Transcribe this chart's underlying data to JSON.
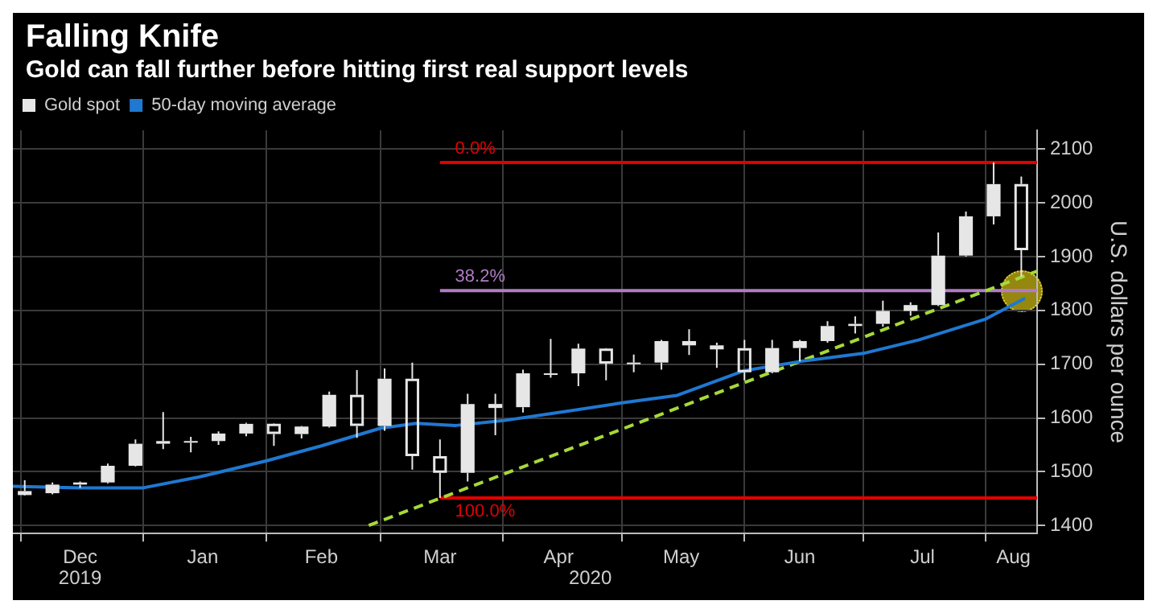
{
  "chart_data": {
    "type": "candlestick",
    "title": "Falling Knife",
    "subtitle": "Gold can fall further before hitting first real support levels",
    "ylabel": "U.S. dollars per ounce",
    "legend": "top left",
    "grid": true,
    "xlim": [
      "2019-11-29",
      "2020-08-14"
    ],
    "xticks": [
      {
        "value": "2019-12-01",
        "label": null
      },
      {
        "value": "2019-12-16",
        "label": "Dec"
      },
      {
        "value": "2020-01-01",
        "label": null
      },
      {
        "value": "2020-01-16",
        "label": "Jan"
      },
      {
        "value": "2020-02-01",
        "label": null
      },
      {
        "value": "2020-02-15",
        "label": "Feb"
      },
      {
        "value": "2020-03-01",
        "label": null
      },
      {
        "value": "2020-03-16",
        "label": "Mar"
      },
      {
        "value": "2020-04-01",
        "label": null
      },
      {
        "value": "2020-04-15",
        "label": "Apr"
      },
      {
        "value": "2020-05-01",
        "label": null
      },
      {
        "value": "2020-05-16",
        "label": "May"
      },
      {
        "value": "2020-06-01",
        "label": null
      },
      {
        "value": "2020-06-15",
        "label": "Jun"
      },
      {
        "value": "2020-07-01",
        "label": null
      },
      {
        "value": "2020-07-16",
        "label": "Jul"
      },
      {
        "value": "2020-08-01",
        "label": null
      },
      {
        "value": "2020-08-08",
        "label": "Aug"
      }
    ],
    "ylim": [
      1385,
      2135
    ],
    "yticks": [
      1400,
      1500,
      1600,
      1700,
      1800,
      1900,
      2000,
      2100
    ],
    "annotations": [
      "2019",
      "2020",
      {
        "text": "0.0%",
        "x": "2020-03-19",
        "y": 2075
      },
      {
        "text": "38.2%",
        "x": "2020-03-19",
        "y": 1837
      },
      {
        "text": "100.0%",
        "x": "2020-03-19",
        "y": 1451
      }
    ],
    "ref_lines": [
      {
        "axis": "y",
        "value": 2075,
        "color": "#e00000"
      },
      {
        "axis": "y",
        "value": 1837,
        "color": "#b07cc6"
      },
      {
        "axis": "y",
        "value": 1451,
        "color": "#e00000"
      }
    ],
    "series": [
      {
        "name": "Gold spot",
        "type": "candlestick",
        "color": "#e6e6e6",
        "x": [
          "2019-12-02",
          "2019-12-09",
          "2019-12-16",
          "2019-12-23",
          "2019-12-30",
          "2020-01-06",
          "2020-01-13",
          "2020-01-20",
          "2020-01-27",
          "2020-02-03",
          "2020-02-10",
          "2020-02-17",
          "2020-02-24",
          "2020-03-02",
          "2020-03-09",
          "2020-03-16",
          "2020-03-23",
          "2020-03-30",
          "2020-04-06",
          "2020-04-13",
          "2020-04-20",
          "2020-04-27",
          "2020-05-04",
          "2020-05-11",
          "2020-05-18",
          "2020-05-25",
          "2020-06-01",
          "2020-06-08",
          "2020-06-15",
          "2020-06-22",
          "2020-06-29",
          "2020-07-06",
          "2020-07-13",
          "2020-07-20",
          "2020-07-27",
          "2020-08-03",
          "2020-08-10"
        ],
        "ohlc": [
          [
            1464,
            1484,
            1456,
            1460
          ],
          [
            1460,
            1480,
            1458,
            1476
          ],
          [
            1476,
            1482,
            1470,
            1480
          ],
          [
            1480,
            1515,
            1478,
            1511
          ],
          [
            1511,
            1560,
            1510,
            1552
          ],
          [
            1552,
            1611,
            1542,
            1557
          ],
          [
            1557,
            1565,
            1536,
            1557
          ],
          [
            1557,
            1575,
            1550,
            1571
          ],
          [
            1571,
            1591,
            1566,
            1589
          ],
          [
            1589,
            1590,
            1548,
            1570
          ],
          [
            1570,
            1585,
            1562,
            1584
          ],
          [
            1584,
            1649,
            1582,
            1643
          ],
          [
            1643,
            1689,
            1563,
            1585
          ],
          [
            1585,
            1692,
            1576,
            1673
          ],
          [
            1673,
            1703,
            1504,
            1529
          ],
          [
            1529,
            1560,
            1451,
            1498
          ],
          [
            1498,
            1645,
            1482,
            1626
          ],
          [
            1626,
            1645,
            1568,
            1620
          ],
          [
            1620,
            1690,
            1610,
            1683
          ],
          [
            1683,
            1747,
            1675,
            1683
          ],
          [
            1683,
            1738,
            1659,
            1729
          ],
          [
            1729,
            1730,
            1670,
            1701
          ],
          [
            1701,
            1718,
            1685,
            1703
          ],
          [
            1703,
            1745,
            1690,
            1743
          ],
          [
            1743,
            1765,
            1717,
            1735
          ],
          [
            1735,
            1740,
            1693,
            1730
          ],
          [
            1730,
            1745,
            1670,
            1685
          ],
          [
            1685,
            1745,
            1683,
            1730
          ],
          [
            1730,
            1745,
            1705,
            1743
          ],
          [
            1743,
            1780,
            1740,
            1771
          ],
          [
            1771,
            1789,
            1757,
            1775
          ],
          [
            1775,
            1818,
            1770,
            1799
          ],
          [
            1799,
            1815,
            1790,
            1810
          ],
          [
            1810,
            1945,
            1808,
            1902
          ],
          [
            1902,
            1984,
            1900,
            1975
          ],
          [
            1975,
            2075,
            1960,
            2035
          ],
          [
            2035,
            2049,
            1863,
            1912
          ]
        ]
      },
      {
        "name": "50-day moving average",
        "type": "line",
        "color": "#1f78d1",
        "x": [
          "2019-11-29",
          "2019-12-16",
          "2020-01-01",
          "2020-01-15",
          "2020-02-01",
          "2020-02-15",
          "2020-03-01",
          "2020-03-10",
          "2020-03-20",
          "2020-04-01",
          "2020-04-15",
          "2020-05-01",
          "2020-05-15",
          "2020-06-01",
          "2020-06-15",
          "2020-07-01",
          "2020-07-15",
          "2020-08-01",
          "2020-08-11"
        ],
        "values": [
          1473,
          1470,
          1470,
          1490,
          1520,
          1548,
          1581,
          1590,
          1586,
          1595,
          1610,
          1628,
          1642,
          1688,
          1705,
          1720,
          1745,
          1784,
          1823
        ]
      },
      {
        "type": "line",
        "color": "#a6d93a",
        "line_style": "dashed",
        "x": [
          "2020-02-27",
          "2020-08-14"
        ],
        "values": [
          1400,
          1873
        ]
      }
    ]
  }
}
